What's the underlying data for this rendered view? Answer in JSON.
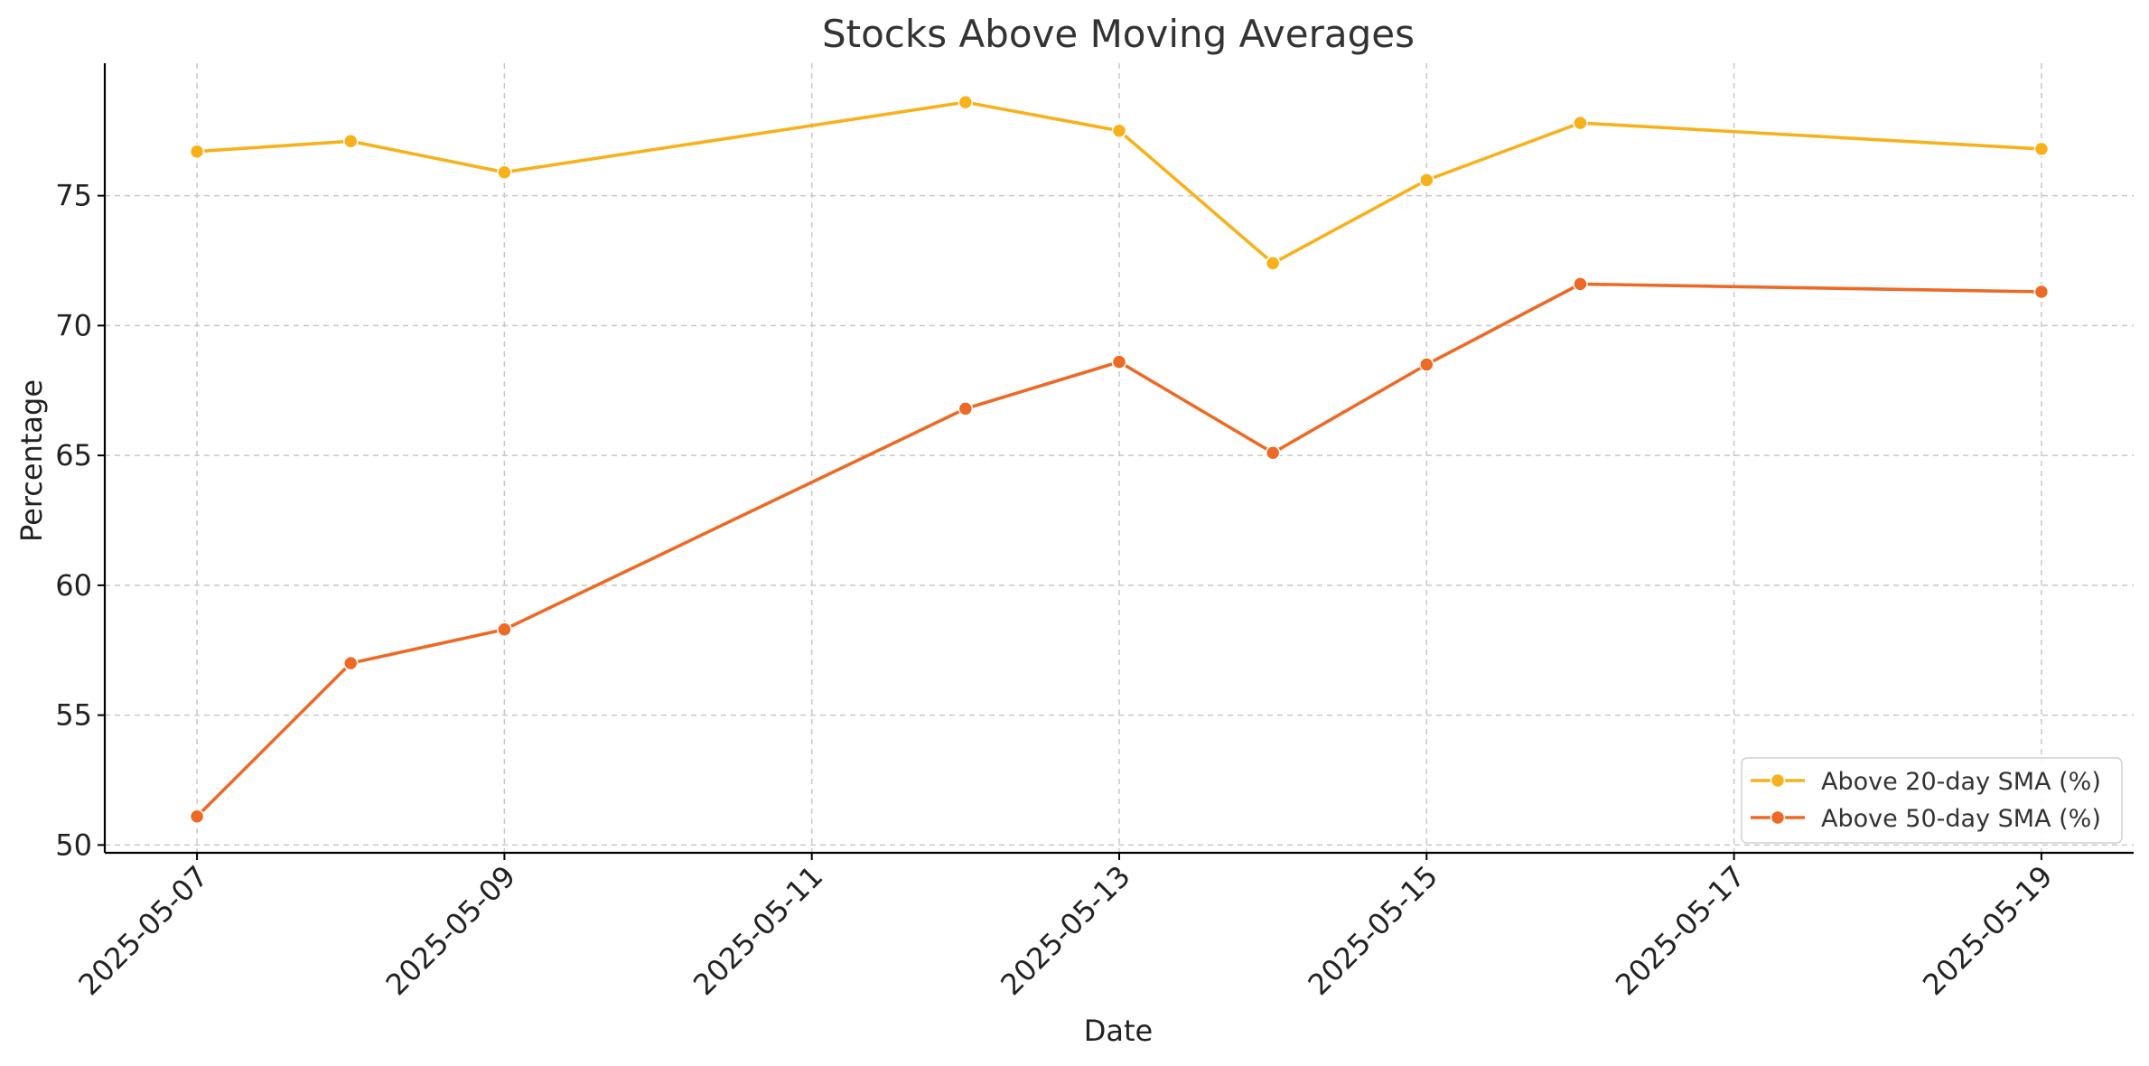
{
  "chart_data": {
    "type": "line",
    "title": "Stocks Above Moving Averages",
    "xlabel": "Date",
    "ylabel": "Percentage",
    "x": [
      "2025-05-07",
      "2025-05-08",
      "2025-05-09",
      "2025-05-12",
      "2025-05-13",
      "2025-05-14",
      "2025-05-15",
      "2025-05-16",
      "2025-05-19"
    ],
    "xticks": [
      "2025-05-07",
      "2025-05-09",
      "2025-05-11",
      "2025-05-13",
      "2025-05-15",
      "2025-05-17",
      "2025-05-19"
    ],
    "xlim": [
      "2025-05-06T09:36",
      "2025-05-19T14:24"
    ],
    "yticks": [
      50,
      55,
      60,
      65,
      70,
      75
    ],
    "ylim": [
      49.7,
      80.1
    ],
    "grid": true,
    "legend_position": "bottom-right",
    "series": [
      {
        "name": "Above 20-day SMA (%)",
        "color": "#F7B11B",
        "values": [
          76.7,
          77.1,
          75.9,
          78.6,
          77.5,
          72.4,
          75.6,
          77.8,
          76.8
        ]
      },
      {
        "name": "Above 50-day SMA (%)",
        "color": "#EC6A26",
        "values": [
          51.1,
          57.0,
          58.3,
          66.8,
          68.6,
          65.1,
          68.5,
          71.6,
          71.3
        ]
      }
    ]
  }
}
